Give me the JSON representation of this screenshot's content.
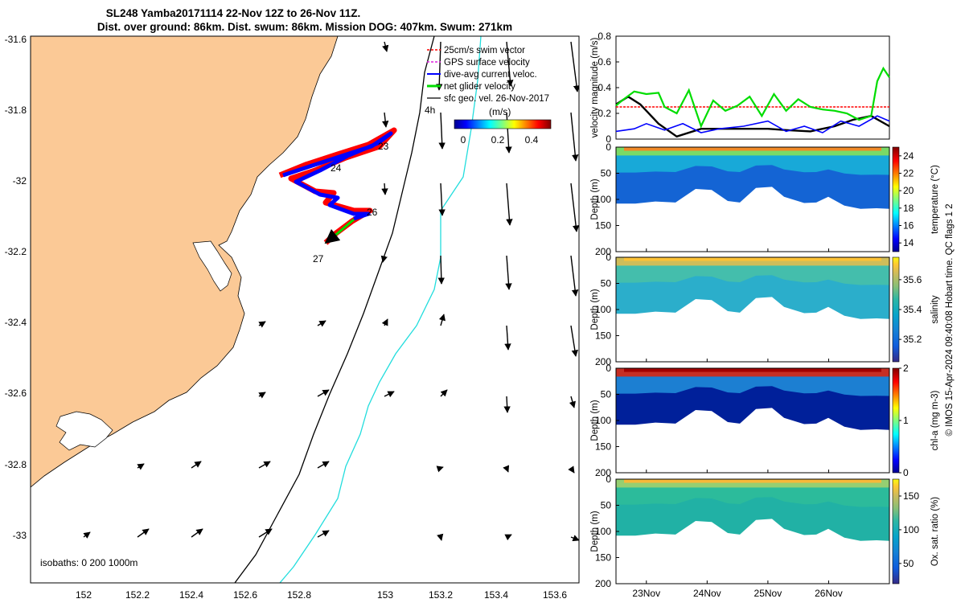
{
  "title_line1": "SL248 Yamba20171114 22-Nov 12Z to 26-Nov 11Z.",
  "title_line2": "Dist. over ground: 86km. Dist. swum: 86km. Mission DOG: 407km. Swum: 271km",
  "map": {
    "lon_ticks": [
      "152",
      "152.2",
      "152.4",
      "152.6",
      "152.8",
      "153",
      "153.2",
      "153.4",
      "153.6"
    ],
    "lat_ticks": [
      "-31.6",
      "-31.8",
      "-32",
      "-32.2",
      "-32.4",
      "-32.6",
      "-32.8",
      "-33"
    ],
    "legend": [
      "25cm/s swim vector",
      "GPS surface velocity",
      "dive-avg current veloc.",
      "net glider velocity",
      "sfc geo. vel. 26-Nov-2017"
    ],
    "colorbar_label": "(m/s)",
    "colorbar_ticks": [
      "0",
      "0.2",
      "0.4"
    ],
    "track_labels": [
      "23",
      "24",
      "26",
      "27"
    ],
    "time_label": "4h",
    "isobaths_label": "isobaths: 0   200   1000m",
    "colors": {
      "land": "#fbc996",
      "swim": "#ff0000",
      "dive": "#0000ff",
      "net": "#00dd00",
      "isobath200": "#000000",
      "isobath1000": "#22dddd"
    }
  },
  "chart_data": [
    {
      "type": "line",
      "title": "",
      "ylabel": "velocity magnitude (m/s)",
      "ylim": [
        0,
        0.8
      ],
      "yticks": [
        "0",
        "0.2",
        "0.4",
        "0.6",
        "0.8"
      ],
      "x_domain_days": [
        22.5,
        27.0
      ],
      "series": [
        {
          "name": "25cm/s swim vector",
          "color": "#ff0000",
          "x": [
            22.5,
            27.0
          ],
          "y": [
            0.25,
            0.25
          ]
        },
        {
          "name": "sfc geo. vel.",
          "color": "#000000",
          "x": [
            22.5,
            22.7,
            22.9,
            23.2,
            23.5,
            23.9,
            24.3,
            24.7,
            25.0,
            25.3,
            25.7,
            26.1,
            26.4,
            26.7,
            27.0
          ],
          "y": [
            0.27,
            0.33,
            0.27,
            0.12,
            0.02,
            0.08,
            0.08,
            0.08,
            0.08,
            0.07,
            0.06,
            0.1,
            0.15,
            0.18,
            0.1
          ]
        },
        {
          "name": "dive-avg current veloc.",
          "color": "#0000ff",
          "x": [
            22.5,
            22.8,
            23.0,
            23.3,
            23.6,
            23.9,
            24.2,
            24.6,
            25.0,
            25.3,
            25.6,
            25.9,
            26.2,
            26.5,
            26.8,
            27.0
          ],
          "y": [
            0.06,
            0.08,
            0.12,
            0.07,
            0.12,
            0.05,
            0.08,
            0.1,
            0.14,
            0.06,
            0.1,
            0.05,
            0.14,
            0.1,
            0.18,
            0.14
          ]
        },
        {
          "name": "net glider velocity",
          "color": "#00dd00",
          "x": [
            22.5,
            22.6,
            22.8,
            23.0,
            23.2,
            23.3,
            23.5,
            23.7,
            23.9,
            24.1,
            24.3,
            24.5,
            24.7,
            24.9,
            25.1,
            25.3,
            25.5,
            25.7,
            25.9,
            26.1,
            26.3,
            26.5,
            26.7,
            26.8,
            26.9,
            27.0
          ],
          "y": [
            0.26,
            0.3,
            0.37,
            0.35,
            0.36,
            0.25,
            0.2,
            0.38,
            0.1,
            0.3,
            0.22,
            0.26,
            0.33,
            0.18,
            0.35,
            0.22,
            0.31,
            0.25,
            0.23,
            0.22,
            0.2,
            0.15,
            0.18,
            0.45,
            0.55,
            0.48
          ]
        }
      ]
    },
    {
      "type": "heatmap",
      "variable": "temperature",
      "ylabel": "Depth (m)",
      "cbar_label": "temperature (°C)",
      "ylim": [
        0,
        200
      ],
      "yticks": [
        "0",
        "50",
        "100",
        "150",
        "200"
      ],
      "clim": [
        13,
        25
      ],
      "cticks": [
        "14",
        "16",
        "18",
        "20",
        "22",
        "24"
      ],
      "surface_value": 24,
      "deep_value": 14,
      "xticks": [
        "23Nov",
        "24Nov",
        "25Nov",
        "26Nov"
      ]
    },
    {
      "type": "heatmap",
      "variable": "salinity",
      "ylabel": "Depth (m)",
      "cbar_label": "salinity",
      "ylim": [
        0,
        200
      ],
      "yticks": [
        "0",
        "50",
        "100",
        "150",
        "200"
      ],
      "clim": [
        35.05,
        35.75
      ],
      "cticks": [
        "35.2",
        "35.4",
        "35.6"
      ],
      "surface_value": 35.6,
      "deep_value": 35.3,
      "xticks": [
        "23Nov",
        "24Nov",
        "25Nov",
        "26Nov"
      ]
    },
    {
      "type": "heatmap",
      "variable": "chl-a",
      "ylabel": "Depth (m)",
      "cbar_label": "chl-a (mg m-3)",
      "ylim": [
        0,
        200
      ],
      "yticks": [
        "0",
        "50",
        "100",
        "150",
        "200"
      ],
      "clim": [
        0,
        2
      ],
      "cticks": [
        "0",
        "1",
        "2"
      ],
      "surface_value": 2,
      "deep_value": 0.1,
      "xticks": [
        "23Nov",
        "24Nov",
        "25Nov",
        "26Nov"
      ]
    },
    {
      "type": "heatmap",
      "variable": "oxygen",
      "ylabel": "Depth (m)",
      "cbar_label": "Ox. sat. ratio (%)",
      "ylim": [
        0,
        200
      ],
      "yticks": [
        "0",
        "50",
        "100",
        "150",
        "200"
      ],
      "clim": [
        20,
        175
      ],
      "cticks": [
        "50",
        "100",
        "150"
      ],
      "surface_value": 150,
      "deep_value": 100,
      "xticks": [
        "23Nov",
        "24Nov",
        "25Nov",
        "26Nov"
      ]
    }
  ],
  "footer": "© IMOS 15-Apr-2024 09:40:08 Hobart time. QC flags 1  2"
}
